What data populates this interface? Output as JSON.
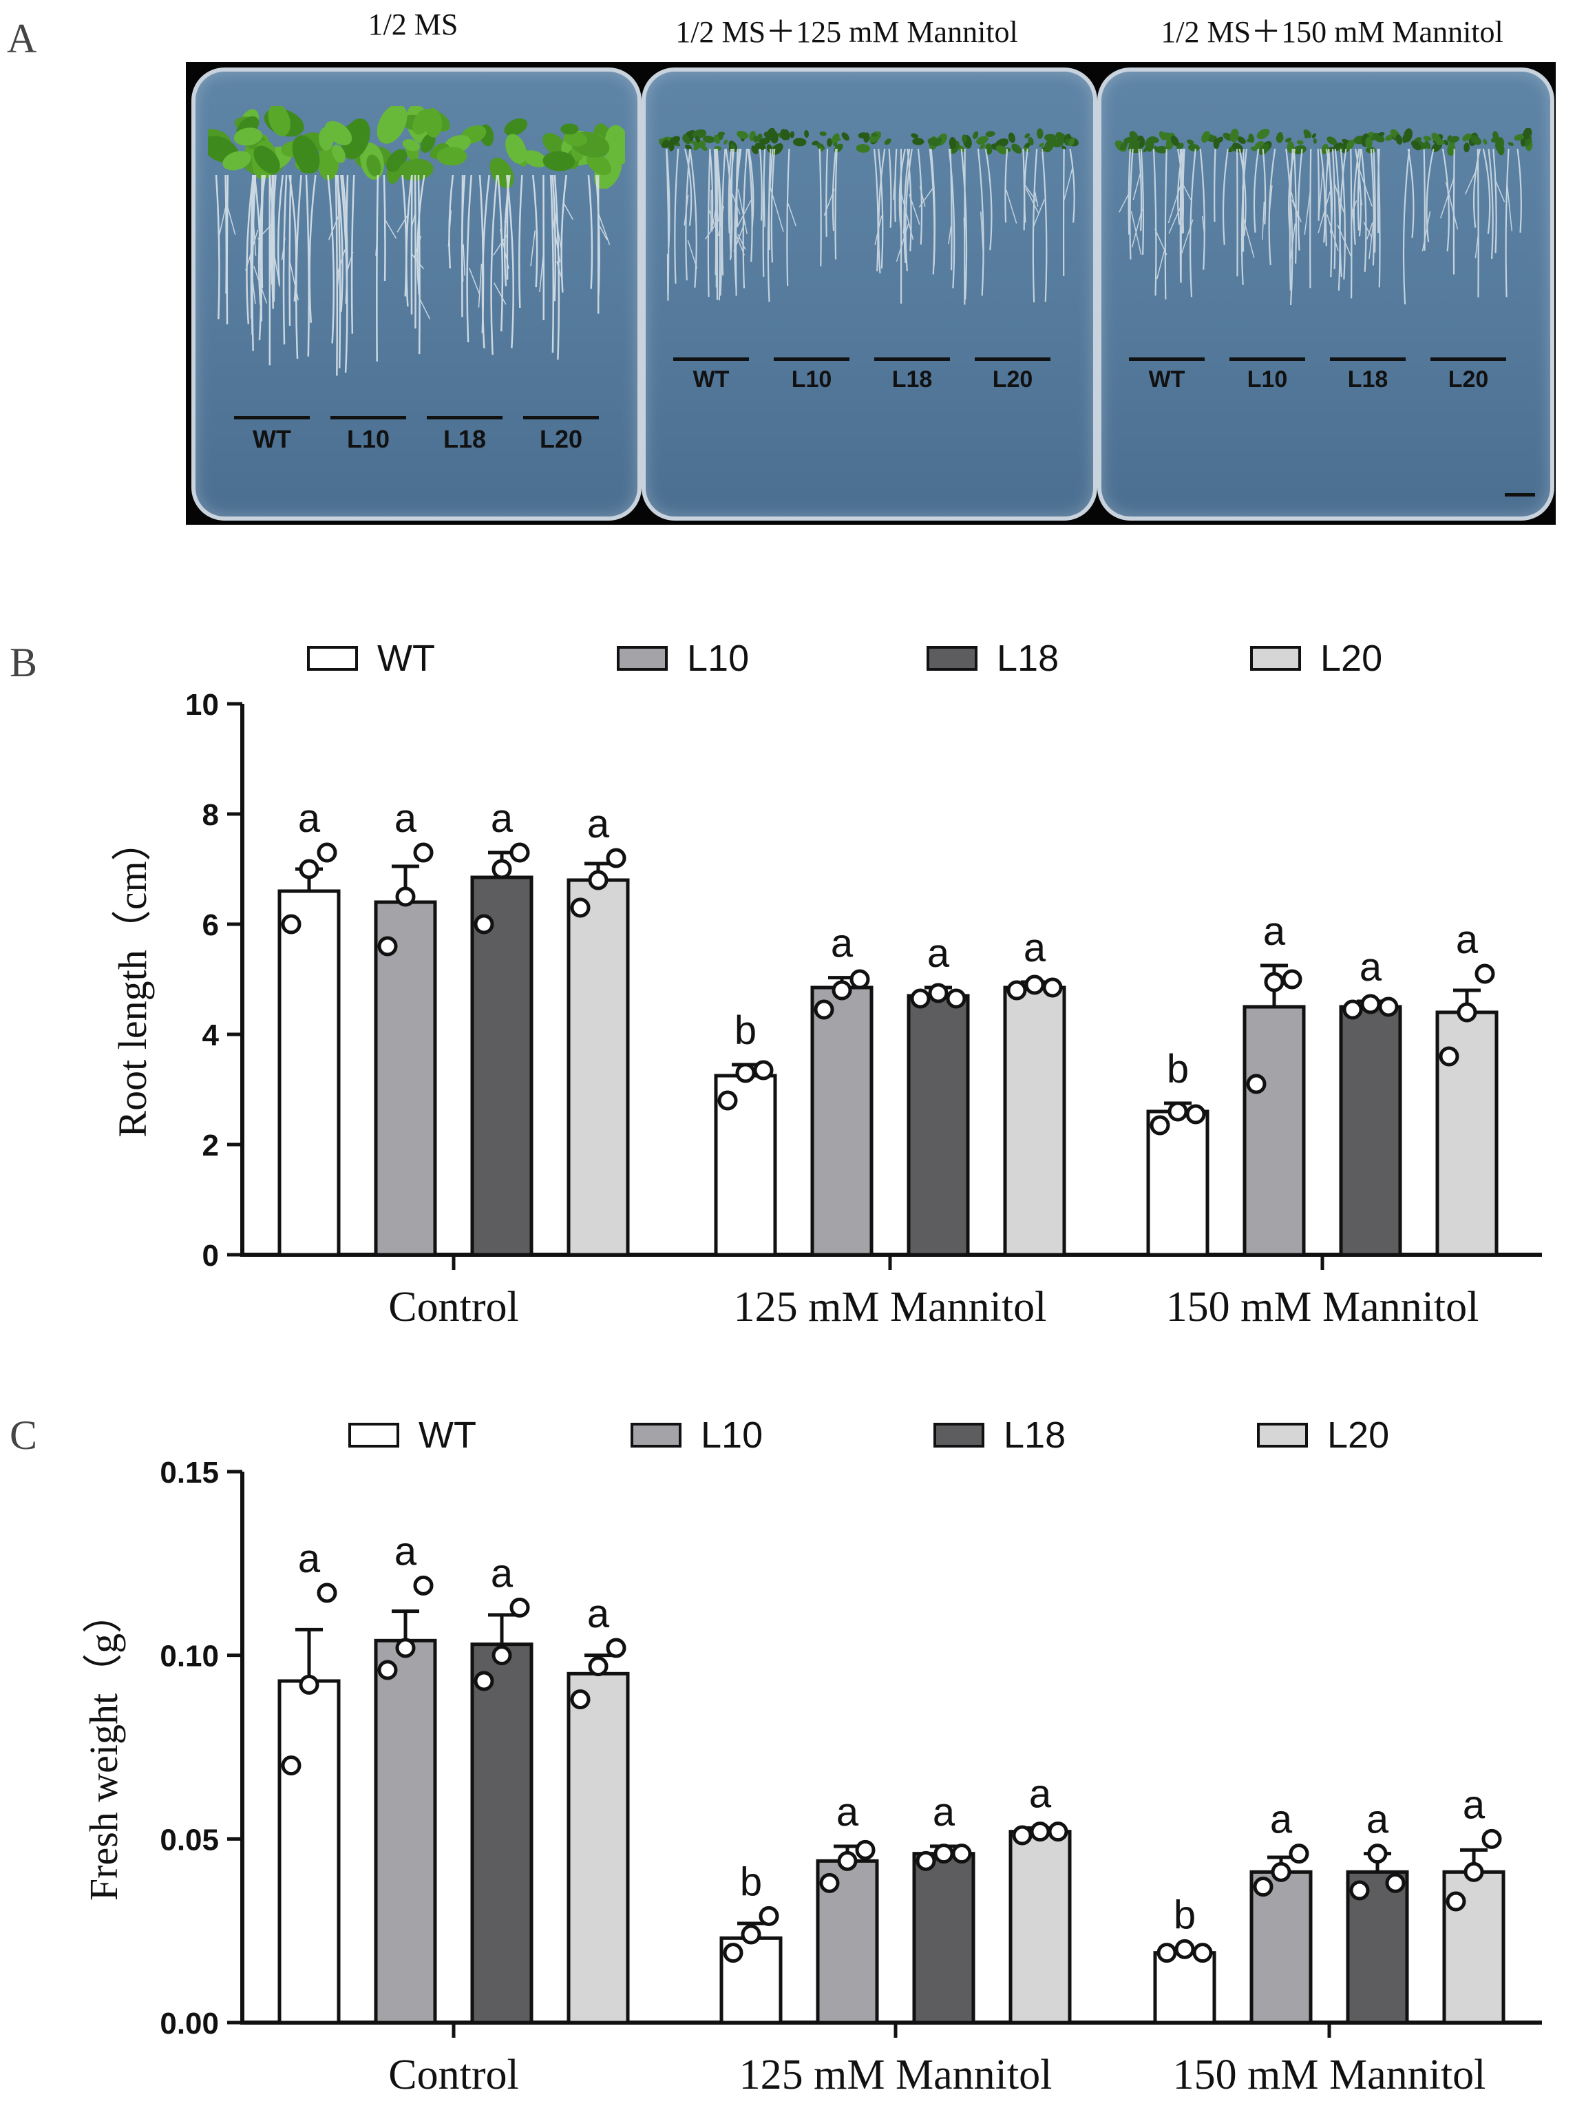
{
  "panel_a": {
    "letter": "A",
    "plates": [
      {
        "title": "1/2 MS",
        "lines": [
          "WT",
          "L10",
          "L18",
          "L20"
        ],
        "seedling_size": "large"
      },
      {
        "title": "1/2 MS＋125 mM Mannitol",
        "lines": [
          "WT",
          "L10",
          "L18",
          "L20"
        ],
        "seedling_size": "small"
      },
      {
        "title": "1/2 MS＋150 mM Mannitol",
        "lines": [
          "WT",
          "L10",
          "L18",
          "L20"
        ],
        "seedling_size": "small"
      }
    ],
    "colors": {
      "agar": "#5a7fa1",
      "leaf": "#4e9a25",
      "root": "#dfe8ee"
    }
  },
  "chart_data": [
    {
      "panel": "B",
      "type": "bar",
      "ylabel": "Root length（cm）",
      "ylim": [
        0,
        10
      ],
      "yticks": [
        "0",
        "2",
        "4",
        "6",
        "8",
        "10"
      ],
      "categories": [
        "Control",
        "125 mM Mannitol",
        "150 mM Mannitol"
      ],
      "legend_position": "top",
      "series": [
        {
          "name": "WT",
          "color": "#ffffff",
          "values": [
            6.6,
            3.25,
            2.6
          ],
          "errors": [
            0.4,
            0.2,
            0.15
          ],
          "letters": [
            "a",
            "b",
            "b"
          ],
          "points": [
            [
              6.0,
              7.0,
              7.3
            ],
            [
              2.8,
              3.3,
              3.35
            ],
            [
              2.35,
              2.6,
              2.55
            ]
          ]
        },
        {
          "name": "L10",
          "color": "#a3a3a8",
          "values": [
            6.4,
            4.85,
            4.5
          ],
          "errors": [
            0.65,
            0.18,
            0.75
          ],
          "letters": [
            "a",
            "a",
            "a"
          ],
          "points": [
            [
              5.6,
              6.5,
              7.3
            ],
            [
              4.45,
              4.8,
              5.0
            ],
            [
              3.1,
              4.95,
              5.0
            ]
          ]
        },
        {
          "name": "L18",
          "color": "#5d5d5f",
          "values": [
            6.85,
            4.7,
            4.5
          ],
          "errors": [
            0.45,
            0.15,
            0.1
          ],
          "letters": [
            "a",
            "a",
            "a"
          ],
          "points": [
            [
              6.0,
              7.0,
              7.3
            ],
            [
              4.65,
              4.75,
              4.65
            ],
            [
              4.45,
              4.55,
              4.5
            ]
          ]
        },
        {
          "name": "L20",
          "color": "#d6d6d6",
          "values": [
            6.8,
            4.85,
            4.4
          ],
          "errors": [
            0.3,
            0.1,
            0.4
          ],
          "letters": [
            "a",
            "a",
            "a"
          ],
          "points": [
            [
              6.3,
              6.8,
              7.2
            ],
            [
              4.8,
              4.9,
              4.85
            ],
            [
              3.6,
              4.4,
              5.1
            ]
          ]
        }
      ]
    },
    {
      "panel": "C",
      "type": "bar",
      "ylabel": "Fresh weight（g）",
      "ylim": [
        0,
        0.15
      ],
      "yticks": [
        "0.00",
        "0.05",
        "0.10",
        "0.15"
      ],
      "categories": [
        "Control",
        "125 mM Mannitol",
        "150 mM Mannitol"
      ],
      "legend_position": "top",
      "series": [
        {
          "name": "WT",
          "color": "#ffffff",
          "values": [
            0.093,
            0.023,
            0.019
          ],
          "errors": [
            0.014,
            0.004,
            0.001
          ],
          "letters": [
            "a",
            "b",
            "b"
          ],
          "points": [
            [
              0.07,
              0.092,
              0.117
            ],
            [
              0.019,
              0.024,
              0.029
            ],
            [
              0.019,
              0.02,
              0.019
            ]
          ]
        },
        {
          "name": "L10",
          "color": "#a3a3a8",
          "values": [
            0.104,
            0.044,
            0.041
          ],
          "errors": [
            0.008,
            0.004,
            0.004
          ],
          "letters": [
            "a",
            "a",
            "a"
          ],
          "points": [
            [
              0.096,
              0.102,
              0.119
            ],
            [
              0.038,
              0.044,
              0.047
            ],
            [
              0.037,
              0.041,
              0.046
            ]
          ]
        },
        {
          "name": "L18",
          "color": "#5d5d5f",
          "values": [
            0.103,
            0.046,
            0.041
          ],
          "errors": [
            0.008,
            0.002,
            0.005
          ],
          "letters": [
            "a",
            "a",
            "a"
          ],
          "points": [
            [
              0.093,
              0.1,
              0.113
            ],
            [
              0.044,
              0.046,
              0.046
            ],
            [
              0.036,
              0.046,
              0.038
            ]
          ]
        },
        {
          "name": "L20",
          "color": "#d6d6d6",
          "values": [
            0.095,
            0.052,
            0.041
          ],
          "errors": [
            0.005,
            0.001,
            0.006
          ],
          "letters": [
            "a",
            "a",
            "a"
          ],
          "points": [
            [
              0.088,
              0.097,
              0.102
            ],
            [
              0.051,
              0.052,
              0.052
            ],
            [
              0.033,
              0.041,
              0.05
            ]
          ]
        }
      ]
    }
  ]
}
